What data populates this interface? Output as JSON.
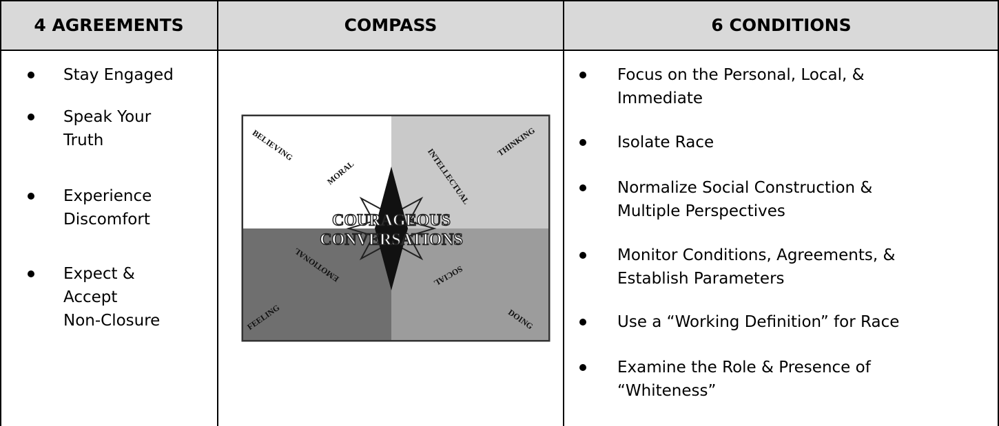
{
  "table": {
    "headers": [
      "4 AGREEMENTS",
      "COMPASS",
      "6 CONDITIONS"
    ],
    "agreements": [
      [
        "Stay Engaged"
      ],
      [
        "Speak Your",
        "Truth"
      ],
      [
        "Experience",
        "Discomfort"
      ],
      [
        "Expect &",
        "Accept",
        "Non-Closure"
      ]
    ],
    "compass": {
      "quadrants": [
        "BELIEVING",
        "THINKING",
        "FEELING",
        "DOING"
      ],
      "dimensions": [
        "MORAL",
        "INTELLECTUAL",
        "EMOTIONAL",
        "SOCIAL"
      ],
      "center": [
        "COURAGEOUS",
        "CONVERSATIONS"
      ]
    },
    "conditions": [
      [
        "Focus on the Personal, Local, &",
        "Immediate"
      ],
      [
        "Isolate Race"
      ],
      [
        "Normalize Social Construction &",
        "Multiple Perspectives"
      ],
      [
        "Monitor Conditions, Agreements, &",
        "Establish Parameters"
      ],
      [
        "Use a “Working Definition” for Race"
      ],
      [
        "Examine the Role & Presence of",
        "“Whiteness”"
      ]
    ]
  }
}
